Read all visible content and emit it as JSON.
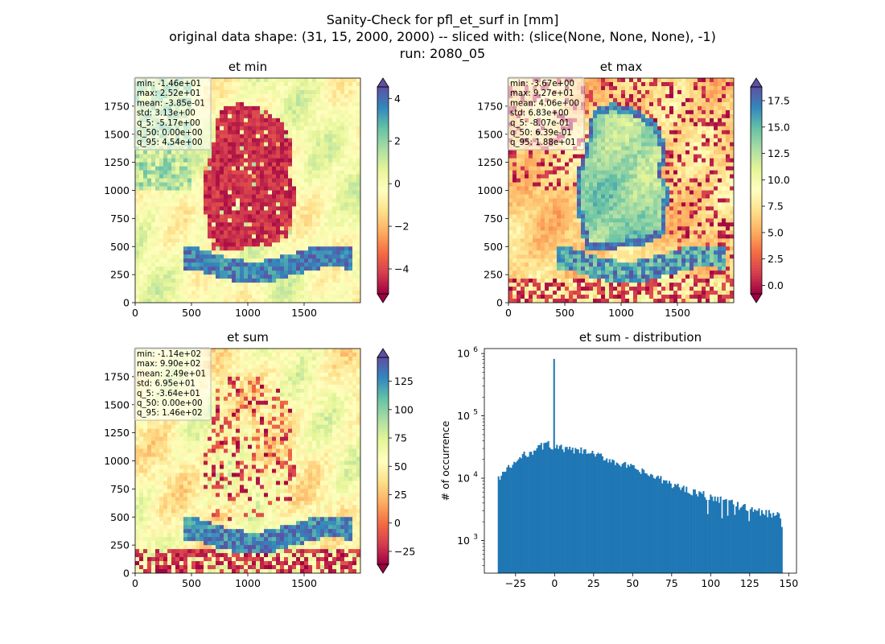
{
  "title_lines": [
    "Sanity-Check for pfl_et_surf in [mm]",
    "original data shape: (31, 15, 2000, 2000) -- sliced with: (slice(None, None, None), -1)",
    "run: 2080_05"
  ],
  "colors": {
    "spectral": [
      "#9e0142",
      "#d53e4f",
      "#f46d43",
      "#fdae61",
      "#fee08b",
      "#ffffbf",
      "#e6f598",
      "#abdda4",
      "#66c2a5",
      "#3288bd",
      "#5e4fa2"
    ],
    "hist_bar": "#1f77b4"
  },
  "chart_data": [
    {
      "type": "heatmap",
      "title": "et min",
      "xticks": [
        0,
        500,
        1000,
        1500
      ],
      "yticks": [
        0,
        250,
        500,
        750,
        1000,
        1250,
        1500,
        1750
      ],
      "extent": [
        0,
        2000
      ],
      "colorbar": {
        "vmin": -5.17,
        "vmax": 4.54,
        "ticks": [
          -4,
          -2,
          0,
          2,
          4
        ],
        "tick_labels": [
          "−4",
          "−2",
          "0",
          "2",
          "4"
        ],
        "extend": "both"
      },
      "stats": [
        "min: -1.46e+01",
        "max: 2.52e+01",
        "mean: -3.85e-01",
        "std: 3.13e+00",
        "q_5: -5.17e+00",
        "q_50: 0.00e+00",
        "q_95: 4.54e+00"
      ]
    },
    {
      "type": "heatmap",
      "title": "et max",
      "xticks": [
        0,
        500,
        1000,
        1500
      ],
      "yticks": [
        0,
        250,
        500,
        750,
        1000,
        1250,
        1500,
        1750
      ],
      "extent": [
        0,
        2000
      ],
      "colorbar": {
        "vmin": -0.807,
        "vmax": 18.8,
        "ticks": [
          0,
          2.5,
          5,
          7.5,
          10,
          12.5,
          15,
          17.5
        ],
        "tick_labels": [
          "0.0",
          "2.5",
          "5.0",
          "7.5",
          "10.0",
          "12.5",
          "15.0",
          "17.5"
        ],
        "extend": "both"
      },
      "stats": [
        "min: -3.67e+00",
        "max: 9.27e+01",
        "mean: 4.06e+00",
        "std: 6.83e+00",
        "q_5: -8.07e-01",
        "q_50: 6.39e-01",
        "q_95: 1.88e+01"
      ]
    },
    {
      "type": "heatmap",
      "title": "et sum",
      "xticks": [
        0,
        500,
        1000,
        1500
      ],
      "yticks": [
        0,
        250,
        500,
        750,
        1000,
        1250,
        1500,
        1750
      ],
      "extent": [
        0,
        2000
      ],
      "colorbar": {
        "vmin": -36.4,
        "vmax": 146,
        "ticks": [
          -25,
          0,
          25,
          50,
          75,
          100,
          125
        ],
        "tick_labels": [
          "−25",
          "0",
          "25",
          "50",
          "75",
          "100",
          "125"
        ],
        "extend": "both"
      },
      "stats": [
        "min: -1.14e+02",
        "max: 9.90e+02",
        "mean: 2.49e+01",
        "std: 6.95e+01",
        "q_5: -3.64e+01",
        "q_50: 0.00e+00",
        "q_95: 1.46e+02"
      ]
    },
    {
      "type": "bar",
      "title": "et sum - distribution",
      "ylabel": "# of occurrence",
      "xlabel": "",
      "yscale": "log",
      "xlim": [
        -45,
        155
      ],
      "ylim": [
        300,
        1200000
      ],
      "xticks": [
        -25,
        0,
        25,
        50,
        75,
        100,
        125,
        150
      ],
      "xtick_labels": [
        "−25",
        "0",
        "25",
        "50",
        "75",
        "100",
        "125",
        "150"
      ],
      "yticks": [
        1000,
        10000,
        100000,
        1000000
      ],
      "ytick_bases": [
        "10",
        "10",
        "10",
        "10"
      ],
      "ytick_exps": [
        "3",
        "4",
        "5",
        "6"
      ],
      "bins": {
        "start": -36.4,
        "end": 146,
        "count": 200
      },
      "envelope": [
        [
          -36.4,
          9000
        ],
        [
          -35,
          11000
        ],
        [
          -30,
          14000
        ],
        [
          -25,
          18000
        ],
        [
          -20,
          23000
        ],
        [
          -15,
          27000
        ],
        [
          -10,
          31000
        ],
        [
          -5,
          36000
        ],
        [
          -2,
          33000
        ],
        [
          0,
          30000
        ],
        [
          2,
          31000
        ],
        [
          5,
          30000
        ],
        [
          10,
          28000
        ],
        [
          15,
          27500
        ],
        [
          20,
          26500
        ],
        [
          25,
          24000
        ],
        [
          30,
          22000
        ],
        [
          35,
          20000
        ],
        [
          40,
          18000
        ],
        [
          50,
          14500
        ],
        [
          60,
          11500
        ],
        [
          70,
          9000
        ],
        [
          80,
          7200
        ],
        [
          90,
          6000
        ],
        [
          100,
          5000
        ],
        [
          110,
          4200
        ],
        [
          120,
          3500
        ],
        [
          130,
          3000
        ],
        [
          140,
          2600
        ],
        [
          146,
          2400
        ]
      ],
      "spike": {
        "x": 0,
        "value": 820000
      }
    }
  ]
}
